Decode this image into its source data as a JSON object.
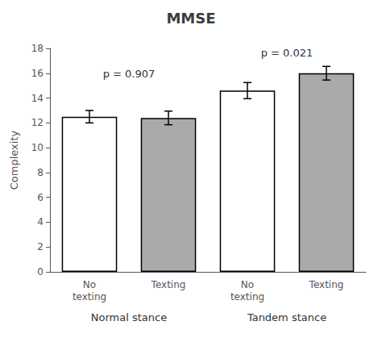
{
  "chart_data": {
    "type": "bar",
    "title": "MMSE",
    "ylabel": "Complexity",
    "categories": [
      "Normal stance",
      "Tandem stance"
    ],
    "series": [
      {
        "name": "No\ntexting",
        "color": "white",
        "values": [
          12.5,
          14.6
        ],
        "errors": [
          0.5,
          0.65
        ]
      },
      {
        "name": "Texting",
        "color": "#aaaaaa",
        "values": [
          12.4,
          16.0
        ],
        "errors": [
          0.55,
          0.55
        ]
      }
    ],
    "annotations": [
      {
        "text": "p = 0.907",
        "x": "Normal stance",
        "y": 15.5
      },
      {
        "text": "p = 0.021",
        "x": "Tandem stance",
        "y": 17.2
      }
    ],
    "ylim": [
      0,
      18
    ],
    "yticks": [
      0,
      2,
      4,
      6,
      8,
      10,
      12,
      14,
      16,
      18
    ],
    "grid": false
  }
}
